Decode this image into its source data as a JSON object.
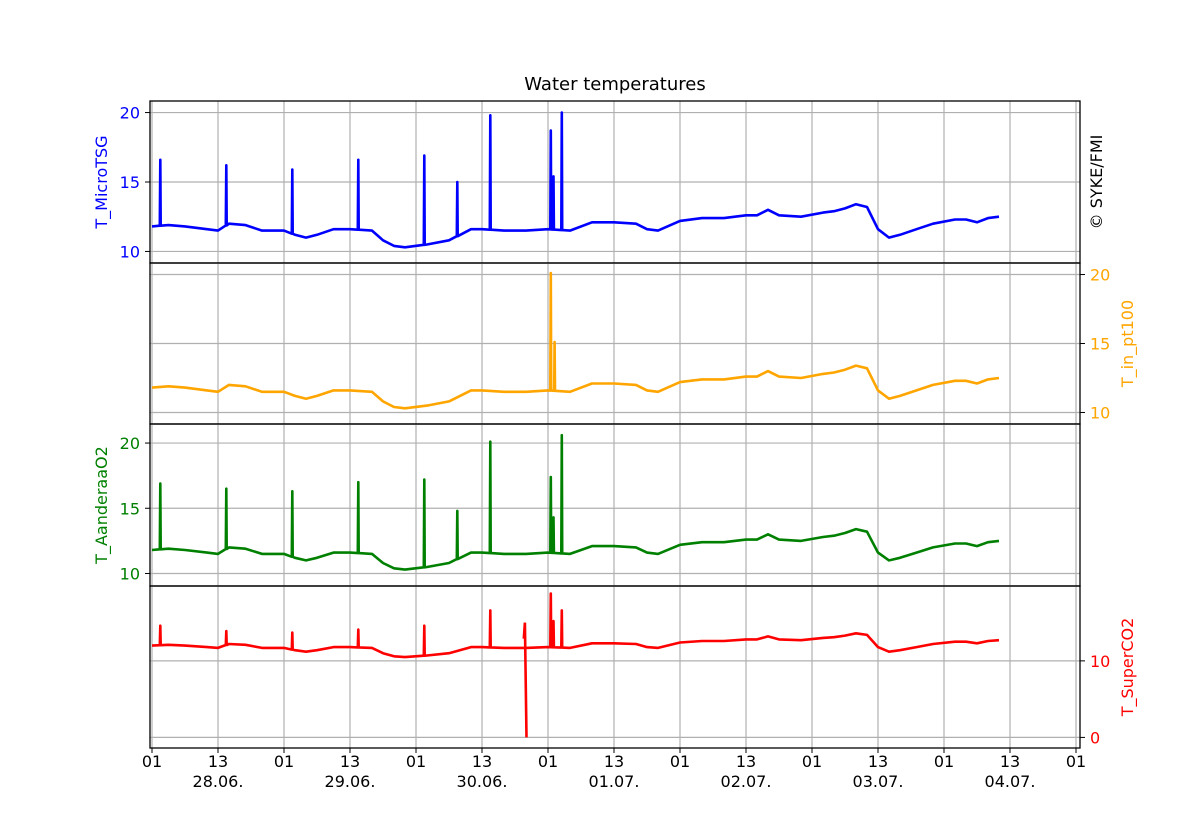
{
  "chart_data": {
    "type": "line",
    "title": "Water temperatures",
    "copyright": "© SYKE/FMI",
    "x_tick_labels": [
      "01",
      "13",
      "01",
      "13",
      "01",
      "13",
      "01",
      "13",
      "01",
      "13",
      "01",
      "13",
      "01",
      "13",
      "01"
    ],
    "date_labels": [
      "28.06.",
      "29.06.",
      "30.06.",
      "01.07.",
      "02.07.",
      "03.07.",
      "04.07."
    ],
    "x_range_hours": [
      0,
      168
    ],
    "panels": [
      {
        "name": "T_MicroTSG",
        "color": "#0000ff",
        "axis_side": "left",
        "ylim": [
          9.6,
          20.4
        ],
        "yticks": [
          10,
          15,
          20
        ],
        "baseline": [
          [
            0,
            11.8
          ],
          [
            3,
            11.9
          ],
          [
            6,
            11.8
          ],
          [
            10,
            11.6
          ],
          [
            12,
            11.5
          ],
          [
            14,
            12.0
          ],
          [
            17,
            11.9
          ],
          [
            20,
            11.5
          ],
          [
            24,
            11.5
          ],
          [
            26,
            11.2
          ],
          [
            28,
            11.0
          ],
          [
            30,
            11.2
          ],
          [
            33,
            11.6
          ],
          [
            36,
            11.6
          ],
          [
            40,
            11.5
          ],
          [
            42,
            10.8
          ],
          [
            44,
            10.4
          ],
          [
            46,
            10.3
          ],
          [
            50,
            10.5
          ],
          [
            54,
            10.8
          ],
          [
            58,
            11.6
          ],
          [
            60,
            11.6
          ],
          [
            64,
            11.5
          ],
          [
            68,
            11.5
          ],
          [
            72,
            11.6
          ],
          [
            76,
            11.5
          ],
          [
            80,
            12.1
          ],
          [
            84,
            12.1
          ],
          [
            88,
            12.0
          ],
          [
            90,
            11.6
          ],
          [
            92,
            11.5
          ],
          [
            96,
            12.2
          ],
          [
            100,
            12.4
          ],
          [
            104,
            12.4
          ],
          [
            108,
            12.6
          ],
          [
            110,
            12.6
          ],
          [
            112,
            13.0
          ],
          [
            114,
            12.6
          ],
          [
            118,
            12.5
          ],
          [
            122,
            12.8
          ],
          [
            124,
            12.9
          ],
          [
            126,
            13.1
          ],
          [
            128,
            13.4
          ],
          [
            130,
            13.2
          ],
          [
            132,
            11.6
          ],
          [
            134,
            11.0
          ],
          [
            136,
            11.2
          ],
          [
            139,
            11.6
          ],
          [
            142,
            12.0
          ],
          [
            146,
            12.3
          ],
          [
            148,
            12.3
          ],
          [
            150,
            12.1
          ],
          [
            152,
            12.4
          ],
          [
            154,
            12.5
          ]
        ],
        "spikes": [
          [
            1.5,
            16.6
          ],
          [
            13.5,
            16.2
          ],
          [
            25.5,
            15.9
          ],
          [
            37.5,
            16.6
          ],
          [
            49.5,
            16.9
          ],
          [
            55.5,
            15.0
          ],
          [
            61.5,
            19.8
          ],
          [
            72.5,
            18.7
          ],
          [
            73,
            15.4
          ],
          [
            74.5,
            20.0
          ]
        ]
      },
      {
        "name": "T_in_pt100",
        "color": "#ffa500",
        "axis_side": "right",
        "ylim": [
          9.6,
          20.4
        ],
        "yticks": [
          10,
          15,
          20
        ],
        "baseline": [
          [
            0,
            11.8
          ],
          [
            3,
            11.9
          ],
          [
            6,
            11.8
          ],
          [
            10,
            11.6
          ],
          [
            12,
            11.5
          ],
          [
            14,
            12.0
          ],
          [
            17,
            11.9
          ],
          [
            20,
            11.5
          ],
          [
            24,
            11.5
          ],
          [
            26,
            11.2
          ],
          [
            28,
            11.0
          ],
          [
            30,
            11.2
          ],
          [
            33,
            11.6
          ],
          [
            36,
            11.6
          ],
          [
            40,
            11.5
          ],
          [
            42,
            10.8
          ],
          [
            44,
            10.4
          ],
          [
            46,
            10.3
          ],
          [
            50,
            10.5
          ],
          [
            54,
            10.8
          ],
          [
            58,
            11.6
          ],
          [
            60,
            11.6
          ],
          [
            64,
            11.5
          ],
          [
            68,
            11.5
          ],
          [
            72,
            11.6
          ],
          [
            76,
            11.5
          ],
          [
            80,
            12.1
          ],
          [
            84,
            12.1
          ],
          [
            88,
            12.0
          ],
          [
            90,
            11.6
          ],
          [
            92,
            11.5
          ],
          [
            96,
            12.2
          ],
          [
            100,
            12.4
          ],
          [
            104,
            12.4
          ],
          [
            108,
            12.6
          ],
          [
            110,
            12.6
          ],
          [
            112,
            13.0
          ],
          [
            114,
            12.6
          ],
          [
            118,
            12.5
          ],
          [
            122,
            12.8
          ],
          [
            124,
            12.9
          ],
          [
            126,
            13.1
          ],
          [
            128,
            13.4
          ],
          [
            130,
            13.2
          ],
          [
            132,
            11.6
          ],
          [
            134,
            11.0
          ],
          [
            136,
            11.2
          ],
          [
            139,
            11.6
          ],
          [
            142,
            12.0
          ],
          [
            146,
            12.3
          ],
          [
            148,
            12.3
          ],
          [
            150,
            12.1
          ],
          [
            152,
            12.4
          ],
          [
            154,
            12.5
          ]
        ],
        "spikes": [
          [
            72.5,
            20.1
          ],
          [
            73.2,
            15.1
          ]
        ]
      },
      {
        "name": "T_AanderaaO2",
        "color": "#008000",
        "axis_side": "left",
        "ylim": [
          9.5,
          21.0
        ],
        "yticks": [
          10,
          15,
          20
        ],
        "baseline": [
          [
            0,
            11.8
          ],
          [
            3,
            11.9
          ],
          [
            6,
            11.8
          ],
          [
            10,
            11.6
          ],
          [
            12,
            11.5
          ],
          [
            14,
            12.0
          ],
          [
            17,
            11.9
          ],
          [
            20,
            11.5
          ],
          [
            24,
            11.5
          ],
          [
            26,
            11.2
          ],
          [
            28,
            11.0
          ],
          [
            30,
            11.2
          ],
          [
            33,
            11.6
          ],
          [
            36,
            11.6
          ],
          [
            40,
            11.5
          ],
          [
            42,
            10.8
          ],
          [
            44,
            10.4
          ],
          [
            46,
            10.3
          ],
          [
            50,
            10.5
          ],
          [
            54,
            10.8
          ],
          [
            58,
            11.6
          ],
          [
            60,
            11.6
          ],
          [
            64,
            11.5
          ],
          [
            68,
            11.5
          ],
          [
            72,
            11.6
          ],
          [
            76,
            11.5
          ],
          [
            80,
            12.1
          ],
          [
            84,
            12.1
          ],
          [
            88,
            12.0
          ],
          [
            90,
            11.6
          ],
          [
            92,
            11.5
          ],
          [
            96,
            12.2
          ],
          [
            100,
            12.4
          ],
          [
            104,
            12.4
          ],
          [
            108,
            12.6
          ],
          [
            110,
            12.6
          ],
          [
            112,
            13.0
          ],
          [
            114,
            12.6
          ],
          [
            118,
            12.5
          ],
          [
            122,
            12.8
          ],
          [
            124,
            12.9
          ],
          [
            126,
            13.1
          ],
          [
            128,
            13.4
          ],
          [
            130,
            13.2
          ],
          [
            132,
            11.6
          ],
          [
            134,
            11.0
          ],
          [
            136,
            11.2
          ],
          [
            139,
            11.6
          ],
          [
            142,
            12.0
          ],
          [
            146,
            12.3
          ],
          [
            148,
            12.3
          ],
          [
            150,
            12.1
          ],
          [
            152,
            12.4
          ],
          [
            154,
            12.5
          ]
        ],
        "spikes": [
          [
            1.5,
            16.9
          ],
          [
            13.5,
            16.5
          ],
          [
            25.5,
            16.3
          ],
          [
            37.5,
            17.0
          ],
          [
            49.5,
            17.2
          ],
          [
            55.5,
            14.8
          ],
          [
            61.5,
            20.1
          ],
          [
            72.5,
            17.4
          ],
          [
            73,
            14.3
          ],
          [
            74.5,
            20.6
          ]
        ]
      },
      {
        "name": "T_SuperCO2",
        "color": "#ff0000",
        "axis_side": "right",
        "ylim": [
          -0.6,
          19.0
        ],
        "yticks": [
          0,
          10
        ],
        "baseline": [
          [
            0,
            12.0
          ],
          [
            3,
            12.1
          ],
          [
            6,
            12.0
          ],
          [
            10,
            11.8
          ],
          [
            12,
            11.7
          ],
          [
            14,
            12.2
          ],
          [
            17,
            12.1
          ],
          [
            20,
            11.7
          ],
          [
            24,
            11.7
          ],
          [
            26,
            11.4
          ],
          [
            28,
            11.2
          ],
          [
            30,
            11.4
          ],
          [
            33,
            11.8
          ],
          [
            36,
            11.8
          ],
          [
            40,
            11.7
          ],
          [
            42,
            11.0
          ],
          [
            44,
            10.6
          ],
          [
            46,
            10.5
          ],
          [
            50,
            10.7
          ],
          [
            54,
            11.0
          ],
          [
            58,
            11.8
          ],
          [
            60,
            11.8
          ],
          [
            64,
            11.7
          ],
          [
            68,
            11.7
          ],
          [
            72,
            11.8
          ],
          [
            76,
            11.7
          ],
          [
            80,
            12.3
          ],
          [
            84,
            12.3
          ],
          [
            88,
            12.2
          ],
          [
            90,
            11.8
          ],
          [
            92,
            11.7
          ],
          [
            96,
            12.4
          ],
          [
            100,
            12.6
          ],
          [
            104,
            12.6
          ],
          [
            108,
            12.8
          ],
          [
            110,
            12.8
          ],
          [
            112,
            13.2
          ],
          [
            114,
            12.8
          ],
          [
            118,
            12.7
          ],
          [
            122,
            13.0
          ],
          [
            124,
            13.1
          ],
          [
            126,
            13.3
          ],
          [
            128,
            13.6
          ],
          [
            130,
            13.4
          ],
          [
            132,
            11.8
          ],
          [
            134,
            11.2
          ],
          [
            136,
            11.4
          ],
          [
            139,
            11.8
          ],
          [
            142,
            12.2
          ],
          [
            146,
            12.5
          ],
          [
            148,
            12.5
          ],
          [
            150,
            12.3
          ],
          [
            152,
            12.6
          ],
          [
            154,
            12.7
          ]
        ],
        "spikes": [
          [
            1.5,
            14.6
          ],
          [
            13.5,
            13.9
          ],
          [
            25.5,
            13.7
          ],
          [
            37.5,
            14.1
          ],
          [
            49.5,
            14.6
          ],
          [
            61.5,
            16.6
          ],
          [
            72.5,
            18.8
          ],
          [
            73,
            15.2
          ],
          [
            74.5,
            16.6
          ]
        ],
        "dropout": [
          [
            67.6,
            12.9
          ],
          [
            67.8,
            15.0
          ],
          [
            68.1,
            0.0
          ]
        ]
      }
    ]
  }
}
